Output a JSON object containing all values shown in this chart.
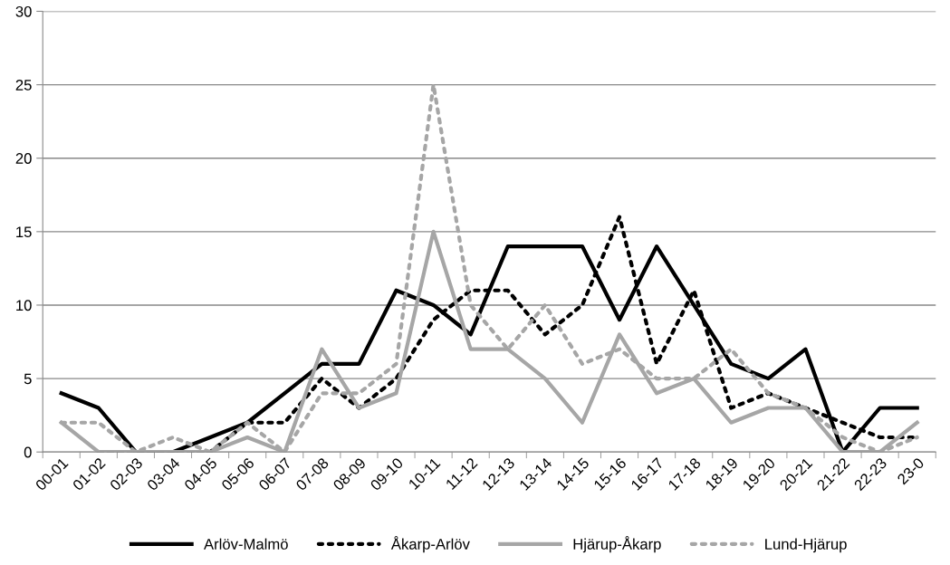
{
  "chart_data": {
    "type": "line",
    "categories": [
      "00-01",
      "01-02",
      "02-03",
      "03-04",
      "04-05",
      "05-06",
      "06-07",
      "07-08",
      "08-09",
      "09-10",
      "10-11",
      "11-12",
      "12-13",
      "13-14",
      "14-15",
      "15-16",
      "16-17",
      "17-18",
      "18-19",
      "19-20",
      "20-21",
      "21-22",
      "22-23",
      "23-0"
    ],
    "series": [
      {
        "name": "Arlöv-Malmö",
        "color": "#000000",
        "line_style": "solid",
        "values": [
          4,
          3,
          0,
          0,
          1,
          2,
          4,
          6,
          6,
          11,
          10,
          8,
          14,
          14,
          14,
          9,
          14,
          10,
          6,
          5,
          7,
          0,
          3,
          3
        ]
      },
      {
        "name": "Åkarp-Arlöv",
        "color": "#000000",
        "line_style": "dotted",
        "values": [
          null,
          0,
          0,
          0,
          0,
          2,
          2,
          5,
          3,
          5,
          9,
          11,
          11,
          8,
          10,
          16,
          6,
          11,
          3,
          4,
          3,
          2,
          1,
          1
        ]
      },
      {
        "name": "Hjärup-Åkarp",
        "color": "#a6a6a6",
        "line_style": "solid",
        "values": [
          2,
          0,
          0,
          0,
          0,
          1,
          0,
          7,
          3,
          4,
          15,
          7,
          7,
          5,
          2,
          8,
          4,
          5,
          2,
          3,
          3,
          0,
          0,
          2
        ]
      },
      {
        "name": "Lund-Hjärup",
        "color": "#a6a6a6",
        "line_style": "dotted",
        "values": [
          2,
          2,
          0,
          1,
          0,
          2,
          0,
          4,
          4,
          6,
          25,
          10,
          7,
          10,
          6,
          7,
          5,
          5,
          7,
          4,
          3,
          1,
          0,
          1
        ]
      }
    ],
    "ylim": [
      0,
      30
    ],
    "yticks": [
      0,
      5,
      10,
      15,
      20,
      25,
      30
    ],
    "grid": "y",
    "legend": "bottom",
    "marker": "none"
  }
}
